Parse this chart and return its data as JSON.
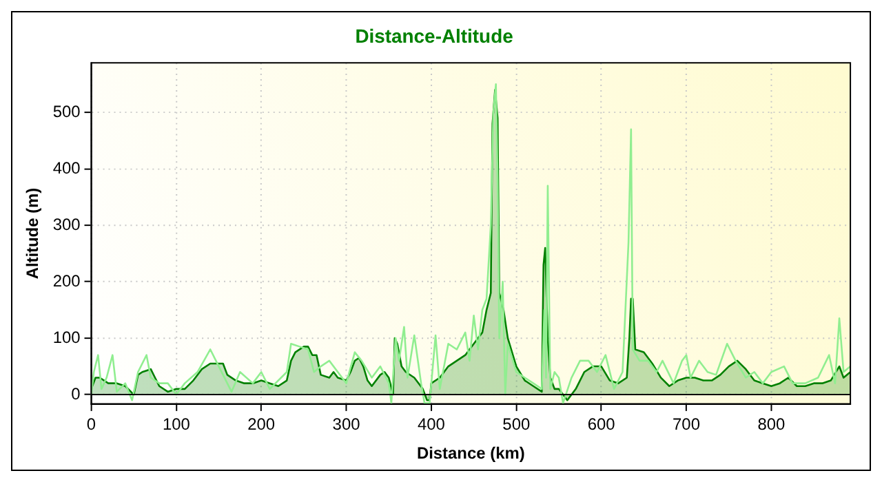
{
  "chart_data": {
    "type": "line",
    "title": "Distance-Altitude",
    "xlabel": "Distance (km)",
    "ylabel": "Altitude (m)",
    "xlim": [
      0,
      893
    ],
    "ylim": [
      -17,
      588
    ],
    "xticks": [
      0,
      100,
      200,
      300,
      400,
      500,
      600,
      700,
      800
    ],
    "yticks": [
      0,
      100,
      200,
      300,
      400,
      500
    ],
    "grid": true,
    "legend": false,
    "marker": "none",
    "line_style": "solid",
    "series": [
      {
        "type": "line",
        "color": "#90ee90",
        "x": [
          0,
          3,
          8,
          12,
          18,
          25,
          30,
          40,
          48,
          55,
          65,
          70,
          80,
          90,
          100,
          110,
          125,
          140,
          150,
          160,
          165,
          175,
          190,
          200,
          210,
          230,
          235,
          245,
          255,
          262,
          270,
          280,
          290,
          300,
          310,
          318,
          330,
          340,
          350,
          353,
          358,
          362,
          368,
          372,
          380,
          388,
          392,
          398,
          405,
          410,
          420,
          430,
          440,
          445,
          450,
          455,
          460,
          465,
          470,
          473,
          476,
          478,
          480,
          484,
          487,
          490,
          500,
          510,
          520,
          530,
          533,
          535,
          537,
          540,
          545,
          550,
          555,
          565,
          575,
          585,
          595,
          605,
          615,
          625,
          632,
          635,
          637,
          645,
          655,
          665,
          672,
          685,
          695,
          700,
          705,
          715,
          725,
          735,
          748,
          758,
          770,
          780,
          790,
          800,
          815,
          825,
          840,
          855,
          868,
          875,
          880,
          885,
          893
        ],
        "values": [
          0,
          40,
          70,
          10,
          30,
          70,
          5,
          20,
          -10,
          40,
          70,
          30,
          20,
          20,
          0,
          20,
          40,
          80,
          50,
          20,
          5,
          40,
          20,
          40,
          10,
          40,
          90,
          85,
          80,
          40,
          50,
          60,
          40,
          20,
          75,
          60,
          30,
          50,
          20,
          -15,
          100,
          60,
          120,
          30,
          105,
          20,
          -15,
          -15,
          105,
          10,
          90,
          80,
          110,
          60,
          140,
          80,
          150,
          170,
          300,
          500,
          550,
          380,
          100,
          200,
          0,
          90,
          40,
          30,
          20,
          10,
          150,
          30,
          370,
          10,
          40,
          30,
          -15,
          30,
          60,
          60,
          40,
          70,
          10,
          40,
          270,
          470,
          80,
          60,
          60,
          40,
          60,
          20,
          60,
          70,
          30,
          60,
          40,
          35,
          90,
          60,
          30,
          40,
          20,
          40,
          50,
          20,
          20,
          30,
          70,
          20,
          135,
          40,
          50
        ]
      },
      {
        "type": "area",
        "color": "#008000",
        "x": [
          0,
          5,
          10,
          20,
          30,
          40,
          50,
          55,
          60,
          70,
          75,
          80,
          90,
          100,
          110,
          120,
          130,
          140,
          150,
          155,
          160,
          170,
          180,
          190,
          200,
          210,
          220,
          230,
          235,
          240,
          250,
          255,
          260,
          265,
          270,
          280,
          285,
          290,
          300,
          305,
          310,
          315,
          320,
          325,
          330,
          340,
          345,
          350,
          355,
          357,
          360,
          365,
          370,
          380,
          390,
          395,
          398,
          400,
          410,
          420,
          430,
          440,
          450,
          460,
          465,
          470,
          472,
          475,
          478,
          480,
          485,
          490,
          500,
          510,
          520,
          530,
          532,
          534,
          537,
          540,
          545,
          550,
          560,
          570,
          580,
          590,
          600,
          610,
          620,
          630,
          633,
          635,
          637,
          640,
          650,
          660,
          670,
          680,
          690,
          700,
          710,
          720,
          730,
          740,
          750,
          760,
          770,
          780,
          790,
          800,
          810,
          820,
          830,
          840,
          850,
          860,
          870,
          880,
          885,
          893
        ],
        "values": [
          10,
          30,
          30,
          20,
          20,
          15,
          0,
          35,
          40,
          45,
          30,
          15,
          5,
          10,
          10,
          25,
          45,
          55,
          55,
          55,
          35,
          25,
          20,
          20,
          25,
          20,
          15,
          25,
          60,
          75,
          85,
          85,
          70,
          70,
          35,
          30,
          40,
          30,
          25,
          40,
          60,
          65,
          50,
          25,
          15,
          35,
          40,
          30,
          0,
          100,
          90,
          50,
          40,
          30,
          10,
          -10,
          -10,
          20,
          30,
          50,
          60,
          70,
          90,
          110,
          150,
          180,
          480,
          540,
          490,
          180,
          150,
          100,
          50,
          25,
          15,
          5,
          230,
          260,
          100,
          30,
          10,
          10,
          -10,
          10,
          40,
          50,
          50,
          25,
          20,
          30,
          100,
          170,
          170,
          80,
          75,
          55,
          30,
          15,
          25,
          30,
          30,
          25,
          25,
          35,
          50,
          60,
          45,
          25,
          20,
          15,
          20,
          30,
          15,
          15,
          20,
          20,
          25,
          50,
          30,
          40
        ]
      }
    ]
  }
}
